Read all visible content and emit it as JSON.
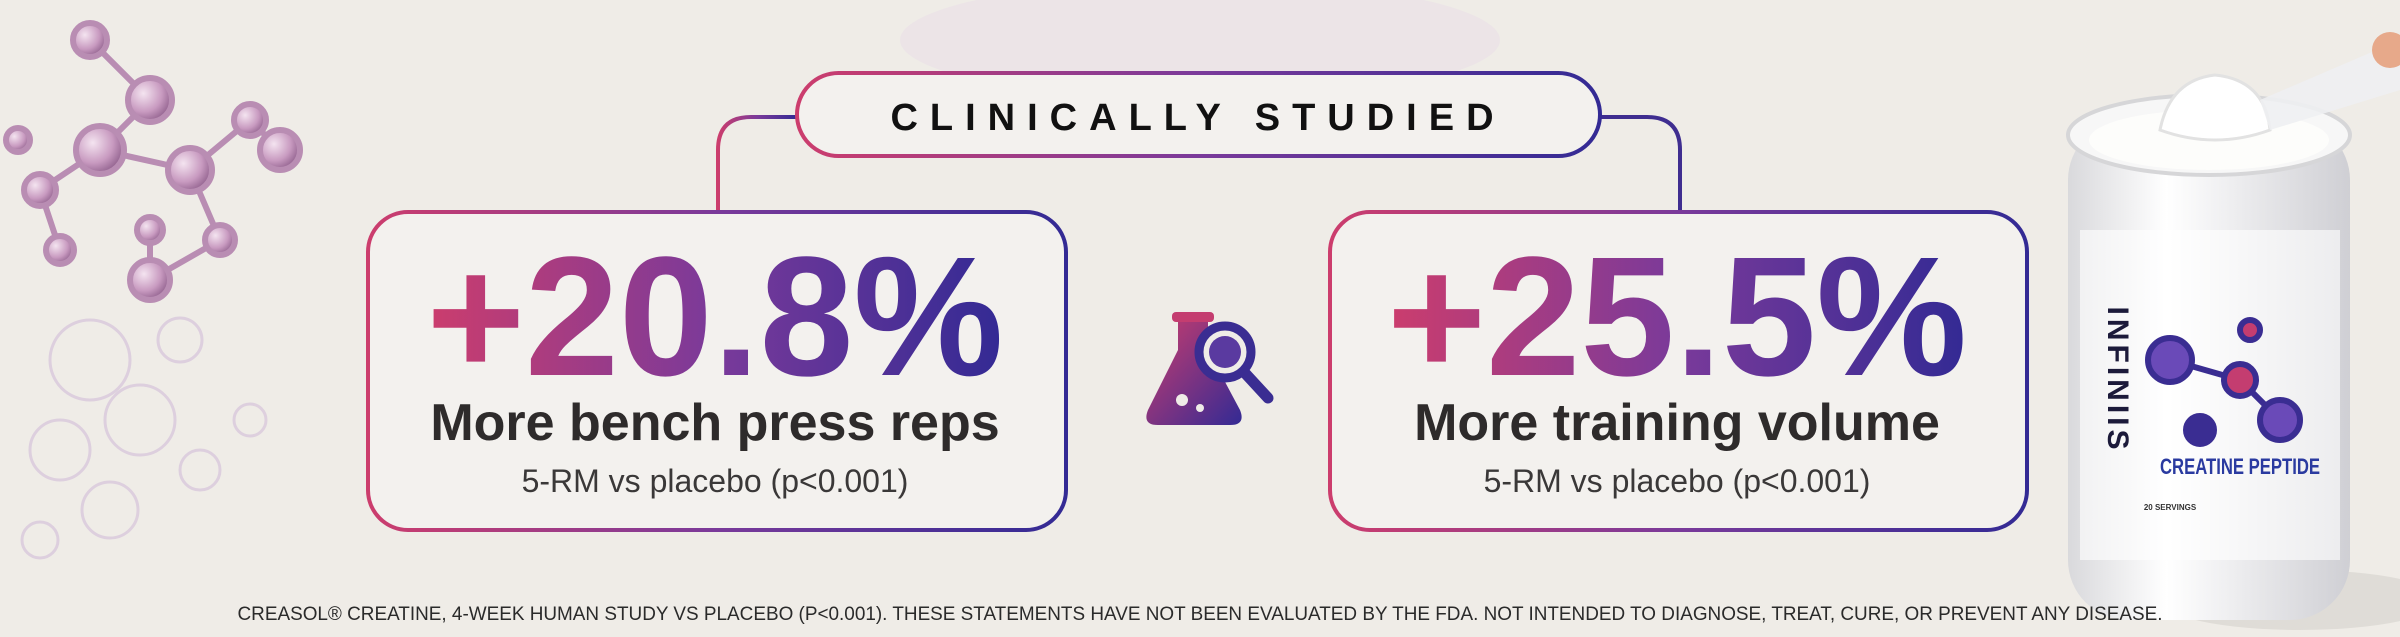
{
  "header": {
    "badge": "CLINICALLY STUDIED"
  },
  "stats": [
    {
      "value": "+20.8%",
      "label": "More bench press reps",
      "note": "5-RM vs placebo (p<0.001)"
    },
    {
      "value": "+25.5%",
      "label": "More training volume",
      "note": "5-RM vs placebo (p<0.001)"
    }
  ],
  "product": {
    "brand": "INFINIIS",
    "name": "CREATINE PEPTIDE",
    "servings": "20 SERVINGS"
  },
  "footer": {
    "disclaimer": "CREASOL® CREATINE, 4-WEEK HUMAN STUDY VS PLACEBO (P<0.001). THESE STATEMENTS HAVE NOT BEEN EVALUATED BY THE FDA. NOT INTENDED TO DIAGNOSE, TREAT, CURE, OR PREVENT ANY DISEASE."
  }
}
